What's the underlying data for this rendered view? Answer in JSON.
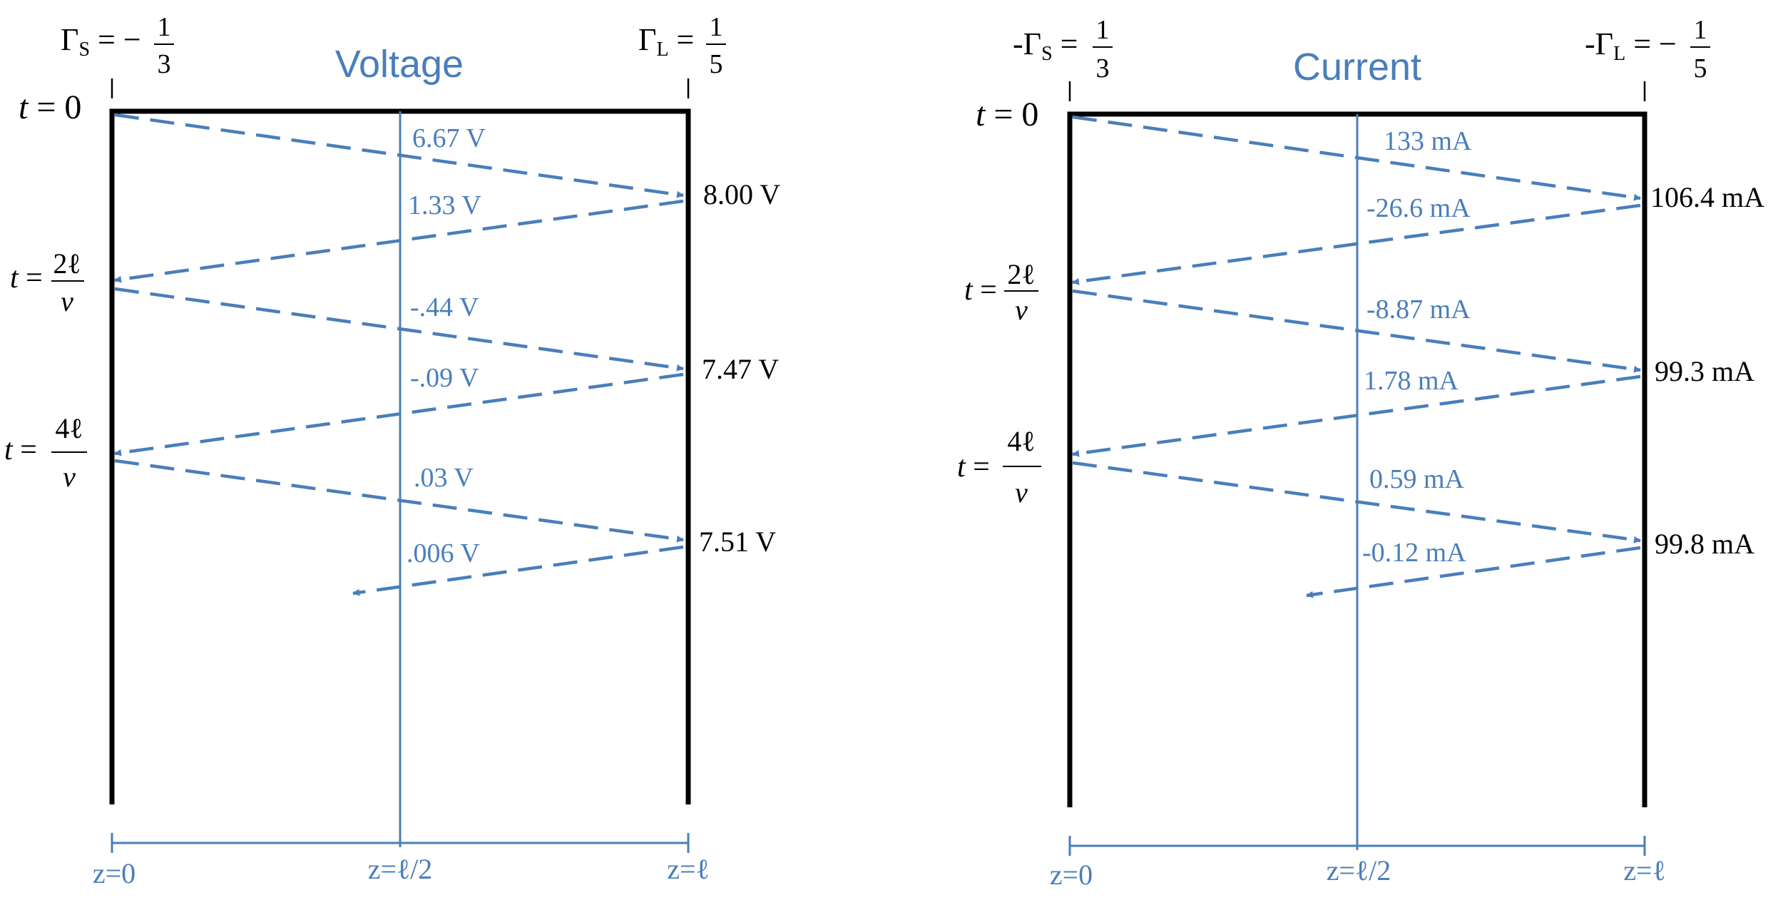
{
  "colors": {
    "accent": "#4a7ebb",
    "ink": "#000000"
  },
  "panels": [
    {
      "title": "Voltage",
      "gamma_s_prefix": "",
      "gamma_s_sign": "−",
      "gamma_s_num": "1",
      "gamma_s_den": "3",
      "gamma_l_prefix": "",
      "gamma_l_sign": "",
      "gamma_l_num": "1",
      "gamma_l_den": "5",
      "z_labels": [
        "z=0",
        "z=ℓ/2",
        "z=ℓ"
      ],
      "wave_labels": [
        "6.67 V",
        "1.33 V",
        "-.44 V",
        "-.09 V",
        ".03 V",
        ".006 V"
      ],
      "load_values": [
        "8.00 V",
        "7.47 V",
        "7.51 V"
      ]
    },
    {
      "title": "Current",
      "gamma_s_prefix": "-",
      "gamma_s_sign": "",
      "gamma_s_num": "1",
      "gamma_s_den": "3",
      "gamma_l_prefix": "-",
      "gamma_l_sign": "−",
      "gamma_l_num": "1",
      "gamma_l_den": "5",
      "z_labels": [
        "z=0",
        "z=ℓ/2",
        "z=ℓ"
      ],
      "wave_labels": [
        "133 mA",
        "-26.6 mA",
        "-8.87 mA",
        "1.78 mA",
        "0.59 mA",
        "-0.12 mA"
      ],
      "load_values": [
        "106.4 mA",
        "99.3 mA",
        "99.8 mA"
      ]
    }
  ],
  "time_labels": {
    "t0": "0",
    "t2_num": "2ℓ",
    "t4_num": "4ℓ",
    "den": "v"
  }
}
